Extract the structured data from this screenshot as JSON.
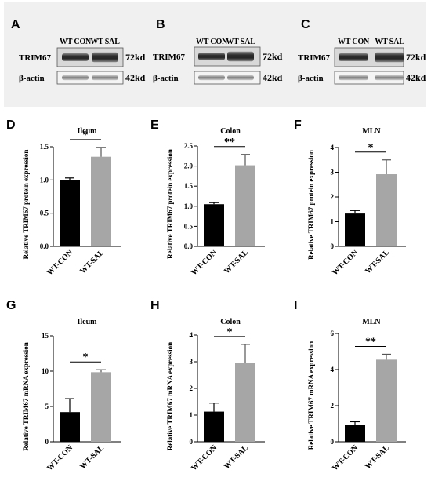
{
  "blots": [
    {
      "letter": "A",
      "lanes": [
        "WT-CON",
        "WT-SAL"
      ],
      "rows": [
        {
          "protein": "TRIM67",
          "size": "72kd"
        },
        {
          "protein": "β-actin",
          "size": "42kd"
        }
      ]
    },
    {
      "letter": "B",
      "lanes": [
        "WT-CON",
        "WT-SAL"
      ],
      "rows": [
        {
          "protein": "TRIM67",
          "size": "72kd"
        },
        {
          "protein": "β-actin",
          "size": "42kd"
        }
      ]
    },
    {
      "letter": "C",
      "lanes": [
        "WT-CON",
        "WT-SAL"
      ],
      "rows": [
        {
          "protein": "TRIM67",
          "size": "72kd"
        },
        {
          "protein": "β-actin",
          "size": "42kd"
        }
      ]
    }
  ],
  "chart_data": [
    {
      "letter": "D",
      "type": "bar",
      "title": "Ileum",
      "ylabel": "Relative TRIM67 protein expression",
      "categories": [
        "WT-CON",
        "WT-SAL"
      ],
      "values": [
        1.0,
        1.35
      ],
      "errors": [
        0.03,
        0.14
      ],
      "ylim": [
        0,
        1.5
      ],
      "yticks": [
        "0.0",
        "0.5",
        "1.0",
        "1.5"
      ],
      "significance": "*",
      "colors": [
        "#000000",
        "#a6a6a6"
      ]
    },
    {
      "letter": "E",
      "type": "bar",
      "title": "Colon",
      "ylabel": "Relative TRIM67 protein expression",
      "categories": [
        "WT-CON",
        "WT-SAL"
      ],
      "values": [
        1.05,
        2.02
      ],
      "errors": [
        0.04,
        0.27
      ],
      "ylim": [
        0,
        2.5
      ],
      "yticks": [
        "0.0",
        "0.5",
        "1.0",
        "1.5",
        "2.0",
        "2.5"
      ],
      "significance": "**",
      "colors": [
        "#000000",
        "#a6a6a6"
      ]
    },
    {
      "letter": "F",
      "type": "bar",
      "title": "MLN",
      "ylabel": "Relative TRIM67 protein expression",
      "categories": [
        "WT-CON",
        "WT-SAL"
      ],
      "values": [
        1.33,
        2.92
      ],
      "errors": [
        0.12,
        0.58
      ],
      "ylim": [
        0,
        4
      ],
      "yticks": [
        "0",
        "1",
        "2",
        "3",
        "4"
      ],
      "significance": "*",
      "colors": [
        "#000000",
        "#a6a6a6"
      ]
    },
    {
      "letter": "G",
      "type": "bar",
      "title": "Ileum",
      "ylabel": "Relative TRIM67 mRNA expression",
      "categories": [
        "WT-CON",
        "WT-SAL"
      ],
      "values": [
        4.2,
        9.85
      ],
      "errors": [
        1.9,
        0.35
      ],
      "ylim": [
        0,
        15
      ],
      "yticks": [
        "0",
        "5",
        "10",
        "15"
      ],
      "significance": "*",
      "colors": [
        "#000000",
        "#a6a6a6"
      ]
    },
    {
      "letter": "H",
      "type": "bar",
      "title": "Colon",
      "ylabel": "Relative TRIM67 mRNA expression",
      "categories": [
        "WT-CON",
        "WT-SAL"
      ],
      "values": [
        1.13,
        2.95
      ],
      "errors": [
        0.32,
        0.7
      ],
      "ylim": [
        0,
        4
      ],
      "yticks": [
        "0",
        "1",
        "2",
        "3",
        "4"
      ],
      "significance": "*",
      "colors": [
        "#000000",
        "#a6a6a6"
      ]
    },
    {
      "letter": "I",
      "type": "bar",
      "title": "MLN",
      "ylabel": "Relative TRIM67 mRNA expression",
      "categories": [
        "WT-CON",
        "WT-SAL"
      ],
      "values": [
        0.93,
        4.55
      ],
      "errors": [
        0.18,
        0.3
      ],
      "ylim": [
        0,
        6
      ],
      "yticks": [
        "0",
        "2",
        "4",
        "6"
      ],
      "significance": "**",
      "colors": [
        "#000000",
        "#a6a6a6"
      ]
    }
  ]
}
